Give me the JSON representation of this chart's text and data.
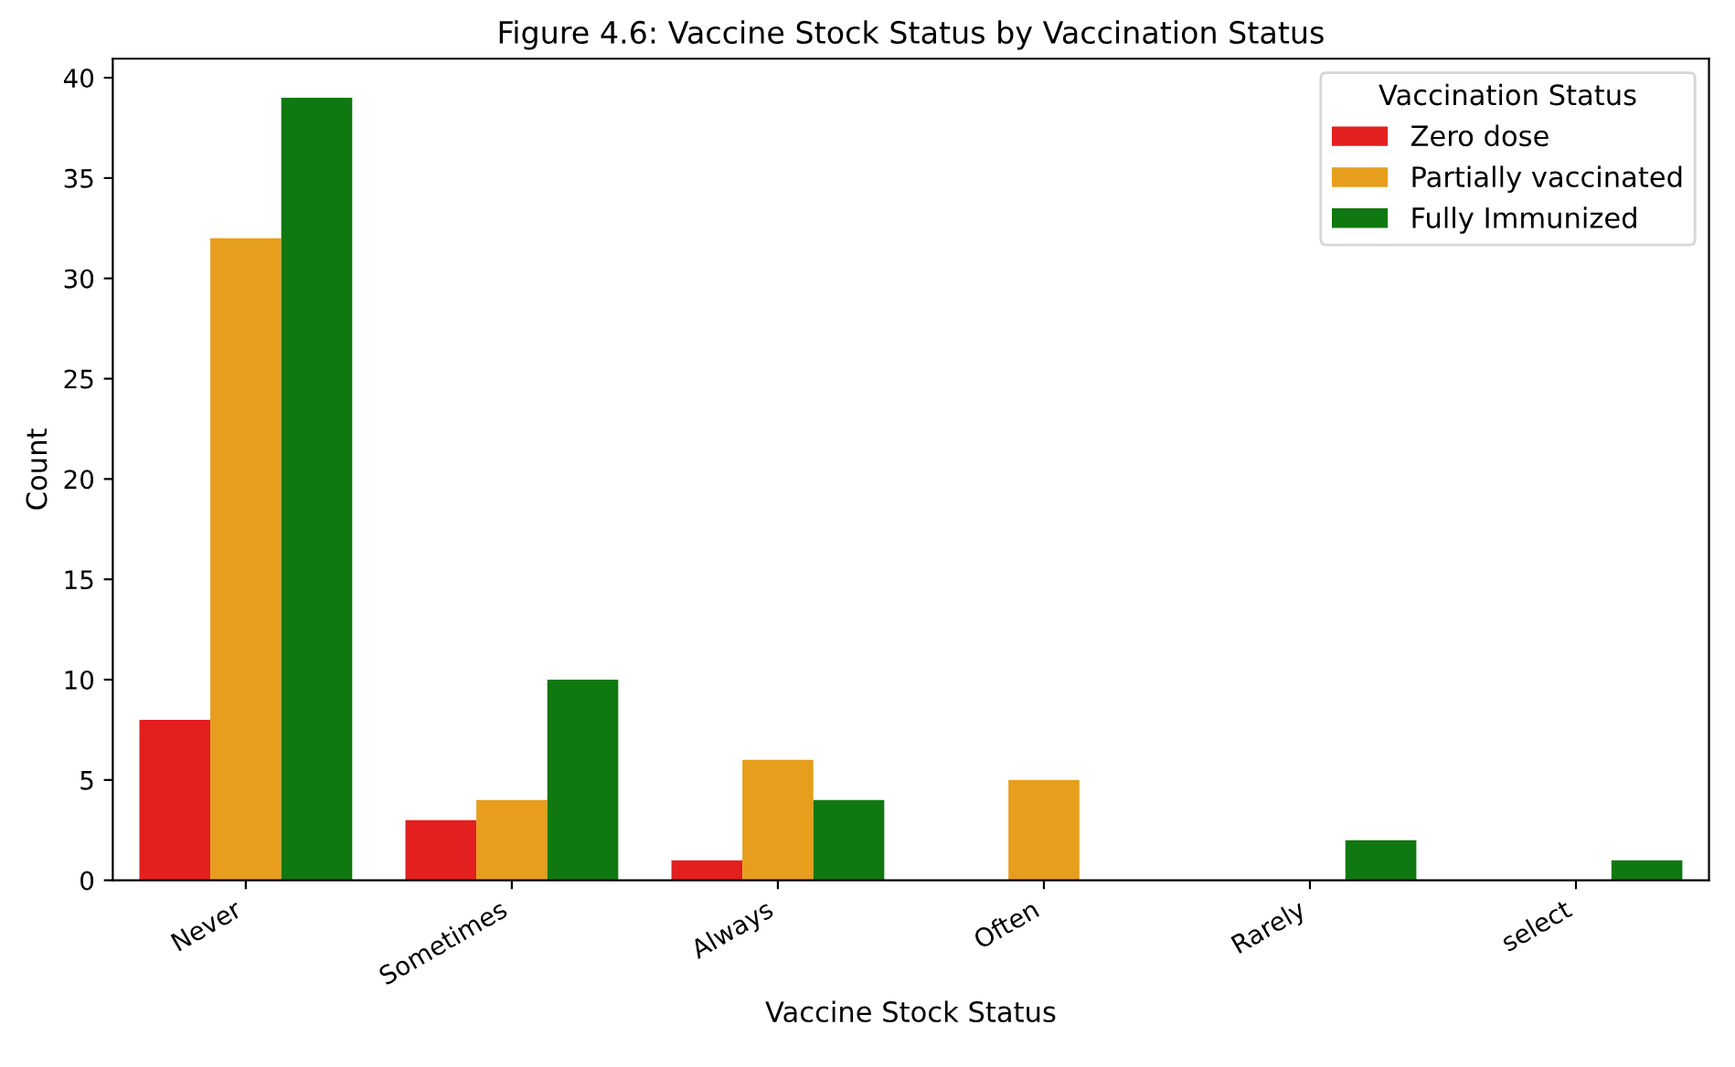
{
  "chart_data": {
    "type": "bar",
    "title": "Figure 4.6: Vaccine Stock Status by Vaccination Status",
    "xlabel": "Vaccine Stock Status",
    "ylabel": "Count",
    "legend_title": "Vaccination Status",
    "categories": [
      "Never",
      "Sometimes",
      "Always",
      "Often",
      "Rarely",
      "select"
    ],
    "series": [
      {
        "name": "Zero dose",
        "color": "#e31f1f",
        "values": [
          8,
          3,
          1,
          null,
          null,
          null
        ]
      },
      {
        "name": "Partially vaccinated",
        "color": "#e69e1c",
        "values": [
          32,
          4,
          6,
          5,
          null,
          null
        ]
      },
      {
        "name": "Fully Immunized",
        "color": "#107810",
        "values": [
          39,
          10,
          4,
          null,
          2,
          1
        ]
      }
    ],
    "ylim": [
      0,
      40.95
    ],
    "yticks": [
      0,
      5,
      10,
      15,
      20,
      25,
      30,
      35,
      40
    ],
    "grid": false,
    "legend": "top right"
  }
}
